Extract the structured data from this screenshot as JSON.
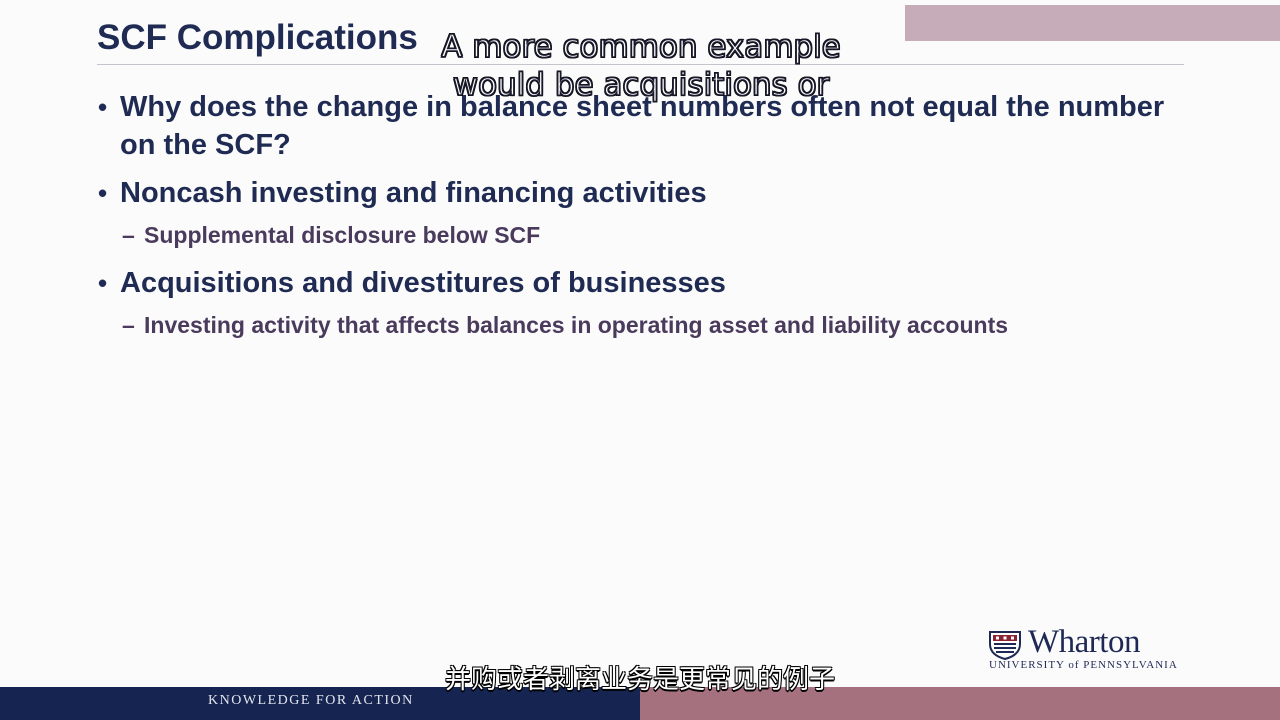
{
  "slide": {
    "title": "SCF Complications",
    "bullets": [
      {
        "text": "Why does the change in balance sheet numbers often not equal the number on the SCF?",
        "subs": []
      },
      {
        "text": "Noncash investing and financing activities",
        "subs": [
          "Supplemental disclosure below SCF"
        ]
      },
      {
        "text": "Acquisitions and divestitures of businesses",
        "subs": [
          "Investing activity that affects balances in operating asset and liability accounts"
        ]
      }
    ]
  },
  "captions": {
    "english_line1": "A more common example",
    "english_line2": "would be acquisitions or",
    "chinese": "并购或者剥离业务是更常见的例子"
  },
  "branding": {
    "logo_wordmark": "Wharton",
    "logo_subtitle": "UNIVERSITY of PENNSYLVANIA",
    "footer_tagline": "KNOWLEDGE FOR ACTION"
  },
  "colors": {
    "navy": "#152451",
    "title_navy": "#1f2b52",
    "sub_purple": "#4a3a5c",
    "mauve": "#a5717f"
  }
}
